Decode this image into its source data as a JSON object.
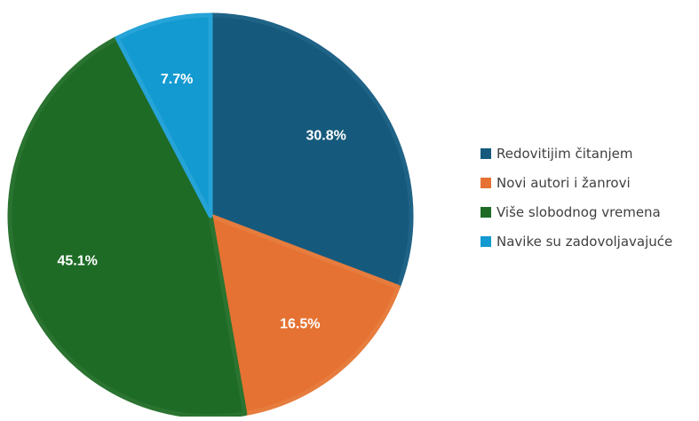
{
  "chart_data": {
    "type": "pie",
    "title": "",
    "categories": [
      "Redovitijim čitanjem",
      "Novi autori i žanrovi",
      "Više slobodnog vremena",
      "Navike su zadovoljavajuće"
    ],
    "values": [
      30.8,
      16.5,
      45.1,
      7.7
    ],
    "data_labels": [
      "30.8%",
      "16.5%",
      "45.1%",
      "7.7%"
    ],
    "colors": [
      "#155a7c",
      "#e57232",
      "#1e6b26",
      "#139ad1"
    ],
    "border_colors": [
      "#1f6387",
      "#e67c3d",
      "#2a7330",
      "#26a4d8"
    ],
    "start_angle_deg": 0,
    "direction": "clockwise",
    "legend_position": "right"
  }
}
